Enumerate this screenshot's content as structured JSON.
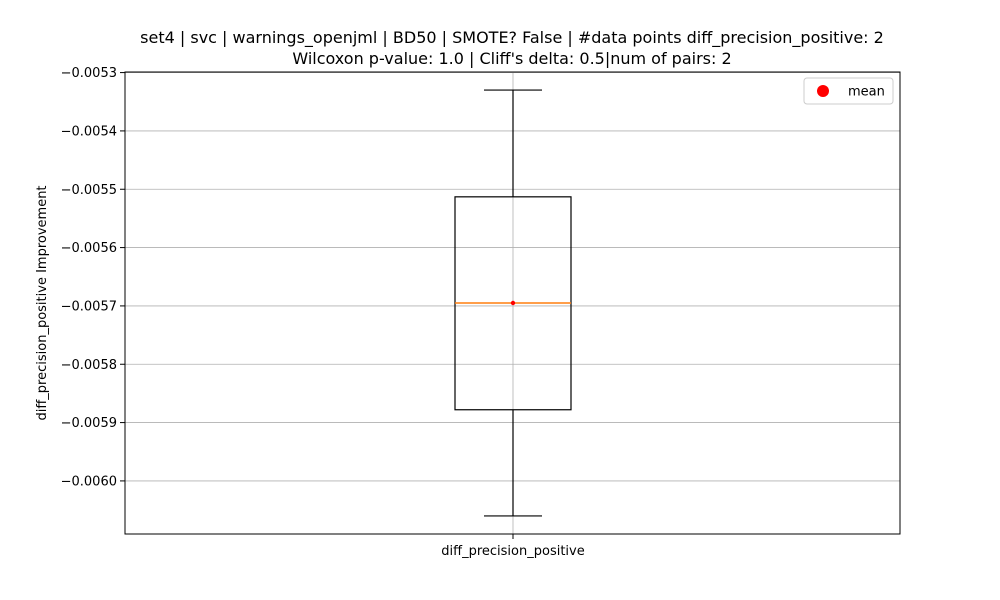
{
  "chart_data": {
    "type": "box",
    "title_lines": [
      "set4 | svc | warnings_openjml | BD50 | SMOTE? False | #data points diff_precision_positive: 2",
      "Wilcoxon p-value: 1.0 | Cliff's delta: 0.5|num of pairs: 2"
    ],
    "ylabel": "diff_precision_positive Improvement",
    "categories": [
      "diff_precision_positive"
    ],
    "box": {
      "whisker_low": -0.00606,
      "q1": -0.005878,
      "median": -0.005695,
      "q3": -0.005513,
      "whisker_high": -0.00533
    },
    "mean": -0.005695,
    "ylim": [
      -0.006091,
      -0.005299
    ],
    "yticks": [
      -0.0053,
      -0.0054,
      -0.0055,
      -0.0056,
      -0.0057,
      -0.0058,
      -0.0059,
      -0.006
    ],
    "ytick_labels": [
      "−0.0053",
      "−0.0054",
      "−0.0055",
      "−0.0056",
      "−0.0057",
      "−0.0058",
      "−0.0059",
      "−0.0060"
    ],
    "grid": true,
    "legend": {
      "placement": "top-right",
      "entries": [
        "mean"
      ]
    },
    "colors": {
      "box": "#000000",
      "median": "#ff7f0e",
      "mean": "#ff0000",
      "grid": "#b0b0b0"
    }
  }
}
